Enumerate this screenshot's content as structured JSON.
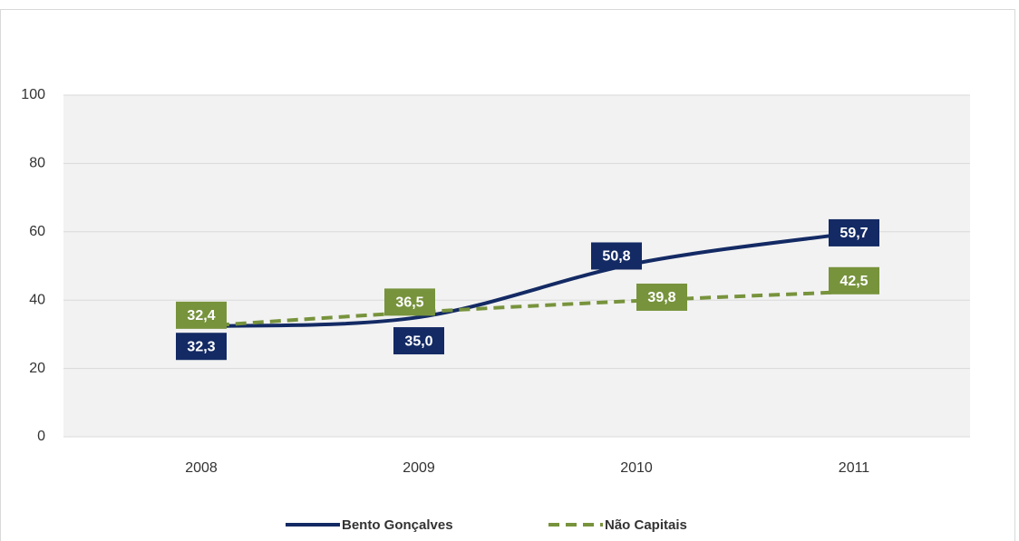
{
  "chart_data": {
    "type": "line",
    "categories": [
      "2008",
      "2009",
      "2010",
      "2011"
    ],
    "series": [
      {
        "name": "Bento Gonçalves",
        "color": "#132a64",
        "values": [
          32.3,
          35.0,
          50.8,
          59.7
        ],
        "value_labels": [
          "32,3",
          "35,0",
          "50,8",
          "59,7"
        ]
      },
      {
        "name": "Não Capitais",
        "color": "#77933c",
        "values": [
          32.4,
          36.5,
          39.8,
          42.5
        ],
        "value_labels": [
          "32,4",
          "36,5",
          "39,8",
          "42,5"
        ],
        "dashed": true
      }
    ],
    "ylim": [
      0,
      100
    ],
    "yticks": [
      0,
      20,
      40,
      60,
      80,
      100
    ],
    "grid": true,
    "legend": "bottom"
  }
}
